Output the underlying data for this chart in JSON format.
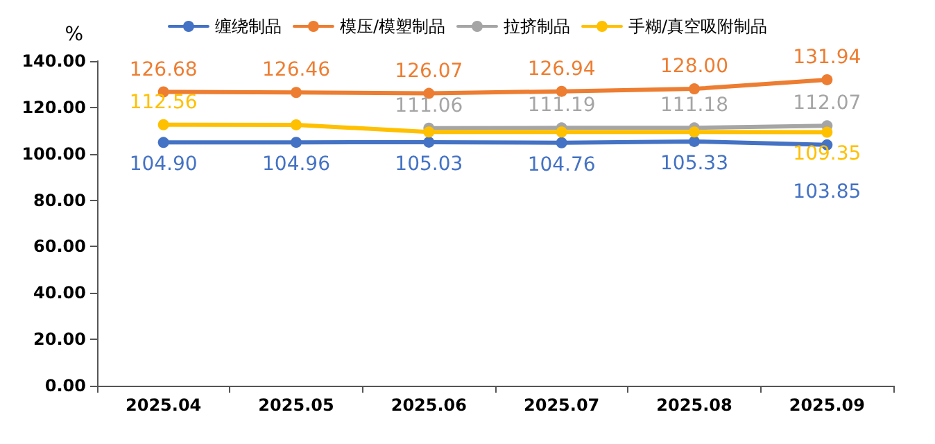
{
  "chart_data": {
    "type": "line",
    "ylabel": "%",
    "categories": [
      "2025.04",
      "2025.05",
      "2025.06",
      "2025.07",
      "2025.08",
      "2025.09"
    ],
    "series": [
      {
        "name": "缠绕制品",
        "color": "#4472c4",
        "values": [
          104.9,
          104.96,
          105.03,
          104.76,
          105.33,
          103.85
        ],
        "value_labels": [
          "104.90",
          "104.96",
          "105.03",
          "104.76",
          "105.33",
          "103.85"
        ]
      },
      {
        "name": "模压/模塑制品",
        "color": "#ed7d31",
        "values": [
          126.68,
          126.46,
          126.07,
          126.94,
          128.0,
          131.94
        ],
        "value_labels": [
          "126.68",
          "126.46",
          "126.07",
          "126.94",
          "128.00",
          "131.94"
        ]
      },
      {
        "name": "拉挤制品",
        "color": "#a5a5a5",
        "values": [
          null,
          null,
          111.06,
          111.19,
          111.18,
          112.07
        ],
        "value_labels": [
          null,
          null,
          "111.06",
          "111.19",
          "111.18",
          "112.07"
        ]
      },
      {
        "name": "手糊/真空吸附制品",
        "color": "#ffc000",
        "values": [
          112.56,
          112.5,
          109.4,
          109.4,
          109.4,
          109.35
        ],
        "value_labels": [
          "112.56",
          null,
          null,
          null,
          null,
          "109.35"
        ]
      }
    ],
    "ylim": [
      0,
      140
    ],
    "yticks": [
      {
        "value": 0,
        "label": "0.00"
      },
      {
        "value": 20,
        "label": "20.00"
      },
      {
        "value": 40,
        "label": "40.00"
      },
      {
        "value": 60,
        "label": "60.00"
      },
      {
        "value": 80,
        "label": "80.00"
      },
      {
        "value": 100,
        "label": "100.00"
      },
      {
        "value": 120,
        "label": "120.00"
      },
      {
        "value": 140,
        "label": "140.00"
      }
    ],
    "legend": "top",
    "grid": false,
    "marker": "circle",
    "line_style": "solid"
  }
}
